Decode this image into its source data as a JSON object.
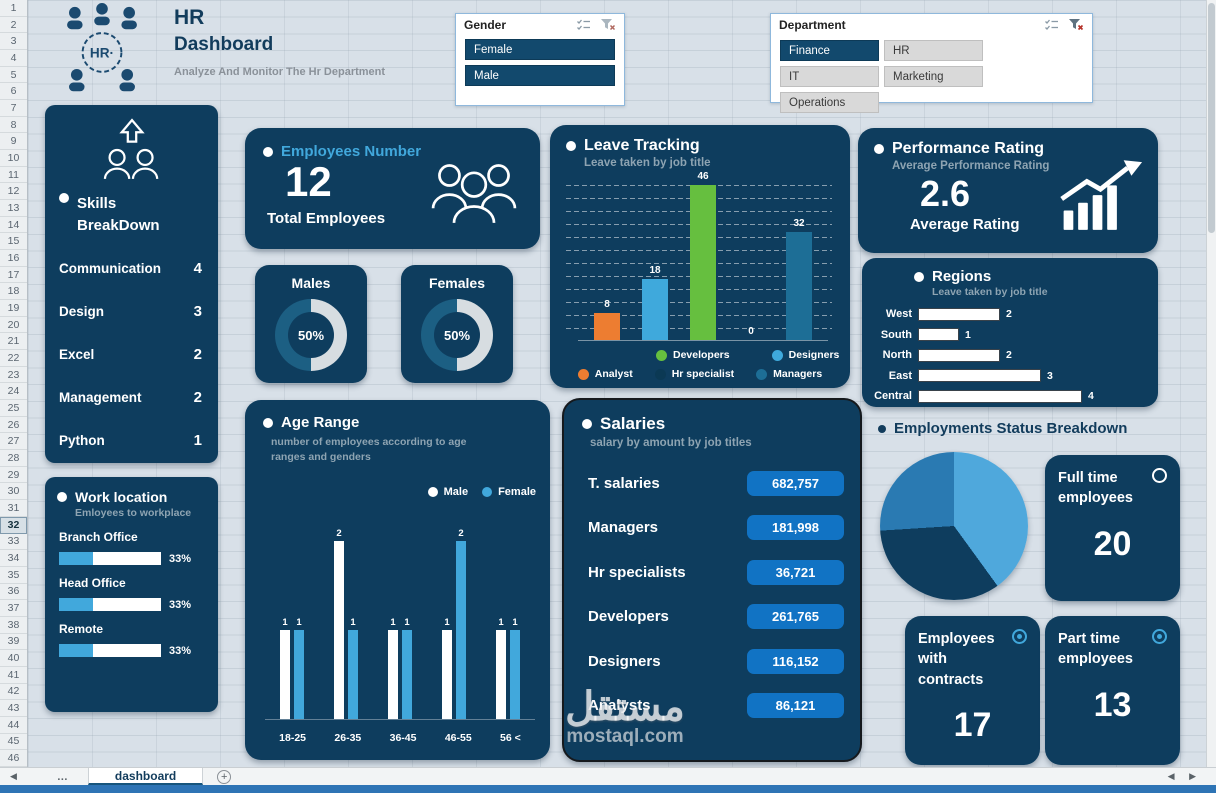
{
  "excel": {
    "rows": [
      "1",
      "2",
      "3",
      "4",
      "5",
      "6",
      "7",
      "8",
      "9",
      "10",
      "11",
      "12",
      "13",
      "14",
      "15",
      "16",
      "17",
      "18",
      "19",
      "20",
      "21",
      "22",
      "23",
      "24",
      "25",
      "26",
      "27",
      "28",
      "29",
      "30",
      "31",
      "32",
      "33",
      "34",
      "35",
      "36",
      "37",
      "38",
      "39",
      "40",
      "41",
      "42",
      "43",
      "44",
      "45",
      "46"
    ],
    "active_row": "32",
    "sheet_tab": "dashboard",
    "nav_dots": "…",
    "nav_left": "◀",
    "nav_pair": "◀ ▶",
    "add_sheet": "+"
  },
  "header": {
    "logo_text": "HR·",
    "title_top": "HR",
    "title_main": "Dashboard",
    "tagline": "Analyze And Monitor The Hr Department"
  },
  "slicers": {
    "gender": {
      "title": "Gender",
      "items": [
        {
          "label": "Female",
          "selected": true
        },
        {
          "label": "Male",
          "selected": true
        }
      ]
    },
    "department": {
      "title": "Department",
      "items": [
        {
          "label": "Finance",
          "selected": true
        },
        {
          "label": "HR",
          "selected": false
        },
        {
          "label": "IT",
          "selected": false
        },
        {
          "label": "Marketing",
          "selected": false
        },
        {
          "label": "Operations",
          "selected": false
        }
      ]
    }
  },
  "skills": {
    "title_line1": "Skills",
    "title_line2": "BreakDown",
    "items": [
      {
        "label": "Communication",
        "value": "4"
      },
      {
        "label": "Design",
        "value": "3"
      },
      {
        "label": "Excel",
        "value": "2"
      },
      {
        "label": "Management",
        "value": "2"
      },
      {
        "label": "Python",
        "value": "1"
      }
    ]
  },
  "employees_number": {
    "title": "Employees Number",
    "value": "12",
    "caption": "Total Employees"
  },
  "gender_cards": [
    {
      "title": "Males",
      "pct": "50%"
    },
    {
      "title": "Females",
      "pct": "50%"
    }
  ],
  "performance": {
    "title": "Performance Rating",
    "subtitle": "Average Performance Rating",
    "value": "2.6",
    "caption": "Average Rating"
  },
  "work_location": {
    "title": "Work location",
    "subtitle": "Emloyees to workplace",
    "items": [
      {
        "label": "Branch Office",
        "pct": 33,
        "pct_label": "33%"
      },
      {
        "label": "Head Office",
        "pct": 33,
        "pct_label": "33%"
      },
      {
        "label": "Remote",
        "pct": 33,
        "pct_label": "33%"
      }
    ]
  },
  "salaries": {
    "title": "Salaries",
    "subtitle": "salary by amount by job titles",
    "rows": [
      {
        "label": "T. salaries",
        "value": "682,757"
      },
      {
        "label": "Managers",
        "value": "181,998"
      },
      {
        "label": "Hr specialists",
        "value": "36,721"
      },
      {
        "label": "Developers",
        "value": "261,765"
      },
      {
        "label": "Designers",
        "value": "116,152"
      },
      {
        "label": "Analysts",
        "value": "86,121"
      }
    ]
  },
  "employment_status": {
    "title": "Employments Status Breakdown",
    "cards": [
      {
        "label": "Full time employees",
        "value": "20"
      },
      {
        "label": "Employees with contracts",
        "value": "17"
      },
      {
        "label": "Part time employees",
        "value": "13"
      }
    ]
  },
  "watermark": {
    "line1": "مستقل",
    "line2": "mostaql.com"
  },
  "colors": {
    "navy": "#0e3d5e",
    "light_blue": "#41a8dc",
    "orange": "#ed7d31",
    "green": "#66bf3f",
    "teal": "#1d6e96",
    "pill_blue": "#1173c4"
  },
  "chart_data": [
    {
      "type": "bar",
      "title": "Leave Tracking",
      "subtitle": "Leave taken by job title",
      "categories": [
        "Analyst",
        "Designers",
        "Developers",
        "Hr specialist",
        "Managers"
      ],
      "values": [
        8,
        18,
        46,
        0,
        32
      ],
      "colors": [
        "#ed7d31",
        "#3fa9dc",
        "#66bf3f",
        "#0b3954",
        "#1d6e96"
      ],
      "ylim": [
        0,
        46
      ],
      "grid": "dashed",
      "legend": [
        [
          {
            "label": "Developers",
            "color": "#66bf3f"
          },
          {
            "label": "Designers",
            "color": "#3fa9dc"
          }
        ],
        [
          {
            "label": "Analyst",
            "color": "#ed7d31"
          },
          {
            "label": "Hr specialist",
            "color": "#0b3954"
          },
          {
            "label": "Managers",
            "color": "#1d6e96"
          }
        ]
      ]
    },
    {
      "type": "bar",
      "orientation": "horizontal",
      "title": "Regions",
      "subtitle": "Leave taken by job title",
      "categories": [
        "West",
        "South",
        "North",
        "East",
        "Central"
      ],
      "values": [
        2,
        1,
        2,
        3,
        4
      ],
      "xlim": [
        0,
        4
      ],
      "bar_color": "#ffffff"
    },
    {
      "type": "bar",
      "grouped": true,
      "title": "Age Range",
      "subtitle": "number of employees according to age ranges and genders",
      "categories": [
        "18-25",
        "26-35",
        "36-45",
        "46-55",
        "56 <"
      ],
      "series": [
        {
          "name": "Male",
          "color": "#ffffff",
          "values": [
            1,
            2,
            1,
            1,
            1
          ]
        },
        {
          "name": "Female",
          "color": "#41a8dc",
          "values": [
            1,
            1,
            1,
            2,
            1
          ]
        }
      ],
      "ylim": [
        0,
        2
      ]
    },
    {
      "type": "pie",
      "title": "Employments Status Breakdown",
      "labels": [
        "Full time employees",
        "Employees with contracts",
        "Part time employees"
      ],
      "values": [
        20,
        17,
        13
      ],
      "colors": [
        "#4fa8dc",
        "#0e3d5e",
        "#2a7ab2"
      ]
    },
    {
      "type": "donut",
      "series": [
        {
          "name": "Males",
          "pct": 50
        },
        {
          "name": "Females",
          "pct": 50
        }
      ]
    }
  ]
}
